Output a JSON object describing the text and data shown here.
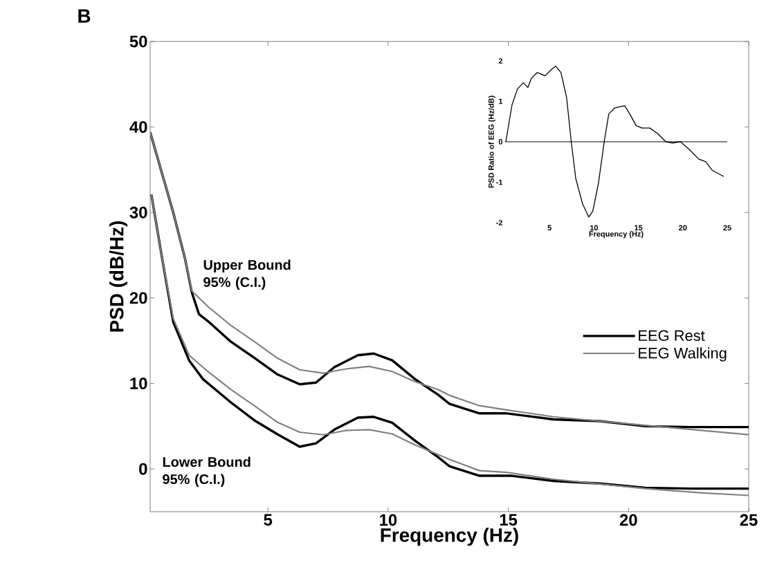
{
  "chart_data": [
    {
      "type": "line",
      "xlabel": "Frequency (Hz)",
      "ylabel": "PSD (dB/Hz)",
      "xlim": [
        0.1,
        25
      ],
      "ylim": [
        -5,
        50
      ],
      "xticks": [
        5,
        10,
        15,
        20,
        25
      ],
      "yticks": [
        0,
        10,
        20,
        30,
        40,
        50
      ],
      "legend": "right",
      "annotations": [
        "B",
        "Upper Bound 95% (C.I.)",
        "Lower Bound 95% (C.I.)"
      ],
      "series": [
        {
          "name": "EEG Rest",
          "color": "#000000",
          "x": [
            0.1,
            1.06,
            1.55,
            1.84,
            2.13,
            2.5,
            3.45,
            4.43,
            5.37,
            6.32,
            7.0,
            7.76,
            8.74,
            9.4,
            10.17,
            11.12,
            12.07,
            12.56,
            13.8,
            14.94,
            16.87,
            18.8,
            20.7,
            22.6,
            25
          ],
          "values": [
            39.4,
            30.0,
            24.6,
            20.6,
            18.1,
            17.3,
            14.9,
            13.0,
            11.1,
            9.9,
            10.1,
            11.9,
            13.3,
            13.5,
            12.7,
            10.5,
            8.7,
            7.6,
            6.5,
            6.5,
            5.8,
            5.6,
            5.0,
            4.9,
            4.9
          ]
        },
        {
          "name": "EEG Walking",
          "color": "#808080",
          "x": [
            0.1,
            1.06,
            1.55,
            1.84,
            2.5,
            3.45,
            4.43,
            5.37,
            6.32,
            7.3,
            8.25,
            9.2,
            10.17,
            11.12,
            12.07,
            12.56,
            13.8,
            14.94,
            16.87,
            20.7,
            23.1,
            25
          ],
          "values": [
            39.4,
            30.0,
            24.6,
            20.8,
            19.0,
            16.8,
            14.9,
            13.0,
            11.6,
            11.2,
            11.7,
            12.0,
            11.4,
            10.2,
            9.3,
            8.6,
            7.4,
            6.9,
            6.1,
            5.1,
            4.5,
            4.0
          ]
        },
        {
          "color": "#000000",
          "x": [
            0.15,
            0.6,
            1.06,
            1.72,
            2.3,
            3.45,
            4.43,
            5.37,
            6.32,
            7.0,
            7.76,
            8.74,
            9.4,
            10.17,
            11.12,
            12.07,
            12.56,
            13.8,
            15.14,
            16.87,
            18.8,
            20.7,
            22.6,
            25
          ],
          "values": [
            32.1,
            24.6,
            17.2,
            12.7,
            10.5,
            7.8,
            5.7,
            4.1,
            2.6,
            3.0,
            4.6,
            6.0,
            6.1,
            5.4,
            3.3,
            1.4,
            0.3,
            -0.8,
            -0.8,
            -1.4,
            -1.7,
            -2.2,
            -2.3,
            -2.3
          ]
        },
        {
          "color": "#808080",
          "x": [
            0.15,
            0.6,
            1.06,
            1.72,
            2.5,
            3.45,
            4.43,
            5.37,
            6.32,
            7.3,
            8.25,
            9.2,
            10.17,
            11.12,
            12.07,
            12.56,
            13.8,
            14.94,
            16.87,
            20.7,
            23.1,
            25
          ],
          "values": [
            32.1,
            24.6,
            17.6,
            13.3,
            11.4,
            9.3,
            7.4,
            5.5,
            4.3,
            4.0,
            4.5,
            4.6,
            4.1,
            2.8,
            1.7,
            1.1,
            -0.2,
            -0.4,
            -1.2,
            -2.3,
            -2.8,
            -3.1
          ]
        }
      ]
    },
    {
      "type": "line",
      "xlabel": "Frequency (Hz)",
      "ylabel": "PSD Ratio of EEG (Hz/dB)",
      "xlim": [
        0,
        25
      ],
      "ylim": [
        -2,
        2
      ],
      "xticks": [
        5,
        10,
        15,
        20,
        25
      ],
      "yticks": [
        -2,
        -1,
        0,
        1,
        2
      ],
      "ref_lines": [
        {
          "axis": "y",
          "value": 0
        }
      ],
      "series": [
        {
          "color": "#000000",
          "x": [
            0.08,
            0.77,
            1.4,
            2.05,
            2.56,
            2.95,
            3.6,
            4.5,
            5.13,
            5.7,
            6.28,
            6.92,
            7.44,
            7.95,
            8.72,
            9.41,
            9.87,
            10.5,
            11.15,
            11.67,
            12.3,
            12.8,
            13.46,
            14.1,
            14.74,
            15.38,
            16.28,
            17.18,
            18.08,
            18.85,
            19.74,
            20.77,
            21.8,
            22.56,
            23.33,
            24.6
          ],
          "values": [
            0,
            0.91,
            1.31,
            1.46,
            1.34,
            1.57,
            1.71,
            1.63,
            1.77,
            1.87,
            1.71,
            1.09,
            0,
            -0.91,
            -1.54,
            -1.86,
            -1.71,
            -1.03,
            0,
            0.69,
            0.83,
            0.86,
            0.89,
            0.66,
            0.4,
            0.34,
            0.34,
            0.2,
            0,
            -0.03,
            0,
            -0.2,
            -0.43,
            -0.49,
            -0.71,
            -0.86
          ]
        }
      ]
    }
  ]
}
